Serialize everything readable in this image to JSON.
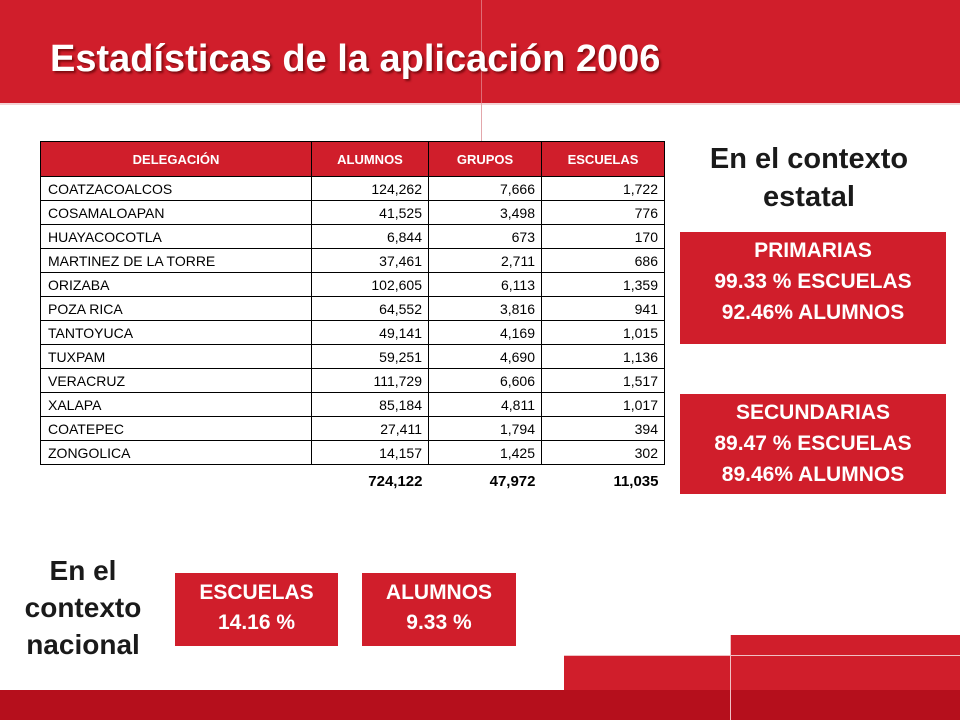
{
  "title": "Estadísticas de la aplicación 2006",
  "table": {
    "headers": [
      "DELEGACIÓN",
      "ALUMNOS",
      "GRUPOS",
      "ESCUELAS"
    ],
    "rows": [
      [
        "COATZACOALCOS",
        "124,262",
        "7,666",
        "1,722"
      ],
      [
        "COSAMALOAPAN",
        "41,525",
        "3,498",
        "776"
      ],
      [
        "HUAYACOCOTLA",
        "6,844",
        "673",
        "170"
      ],
      [
        "MARTINEZ DE LA TORRE",
        "37,461",
        "2,711",
        "686"
      ],
      [
        "ORIZABA",
        "102,605",
        "6,113",
        "1,359"
      ],
      [
        "POZA RICA",
        "64,552",
        "3,816",
        "941"
      ],
      [
        "TANTOYUCA",
        "49,141",
        "4,169",
        "1,015"
      ],
      [
        "TUXPAM",
        "59,251",
        "4,690",
        "1,136"
      ],
      [
        "VERACRUZ",
        "111,729",
        "6,606",
        "1,517"
      ],
      [
        "XALAPA",
        "85,184",
        "4,811",
        "1,017"
      ],
      [
        "COATEPEC",
        "27,411",
        "1,794",
        "394"
      ],
      [
        "ZONGOLICA",
        "14,157",
        "1,425",
        "302"
      ]
    ],
    "totals": [
      "724,122",
      "47,972",
      "11,035"
    ]
  },
  "state_context": {
    "heading_line1": "En el contexto",
    "heading_line2": "estatal",
    "primarias": {
      "title": "PRIMARIAS",
      "escuelas": "99.33 % ESCUELAS",
      "alumnos": "92.46% ALUMNOS"
    },
    "secundarias": {
      "title": "SECUNDARIAS",
      "escuelas": "89.47 % ESCUELAS",
      "alumnos": "89.46% ALUMNOS"
    }
  },
  "national_context": {
    "heading_line1": "En el",
    "heading_line2": "contexto",
    "heading_line3": "nacional",
    "escuelas_label": "ESCUELAS",
    "escuelas_value": "14.16 %",
    "alumnos_label": "ALUMNOS",
    "alumnos_value": "9.33 %"
  },
  "colors": {
    "accent_red": "#d01e2b",
    "dark_red": "#b50f1c"
  }
}
